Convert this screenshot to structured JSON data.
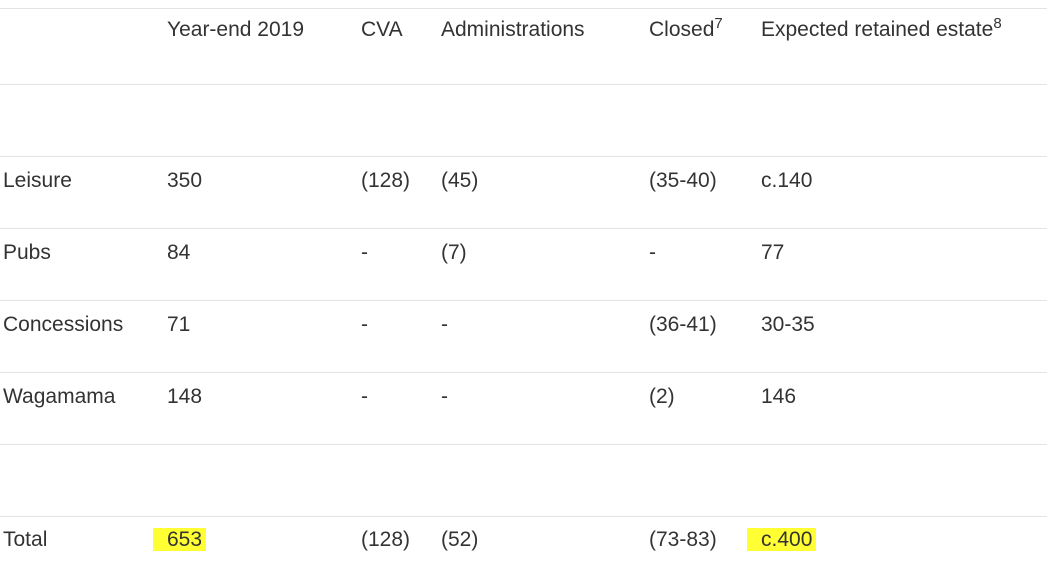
{
  "table": {
    "header": [
      {
        "text": "Year-end 2019"
      },
      {
        "text": "CVA"
      },
      {
        "text": "Administrations"
      },
      {
        "text": "Closed",
        "sup": "7"
      },
      {
        "text": "Expected retained estate",
        "sup": "8"
      }
    ],
    "rows": [
      [
        "Leisure",
        "350",
        "(128)",
        "(45)",
        "(35-40)",
        "c.140"
      ],
      [
        "Pubs",
        "84",
        "-",
        "(7)",
        "-",
        "77"
      ],
      [
        "Concessions",
        "71",
        "-",
        "-",
        "(36-41)",
        "30-35"
      ],
      [
        "Wagamama",
        "148",
        "-",
        "-",
        "(2)",
        "146"
      ]
    ],
    "total": [
      "Total",
      "653",
      "(128)",
      "(52)",
      "(73-83)",
      "c.400"
    ]
  }
}
